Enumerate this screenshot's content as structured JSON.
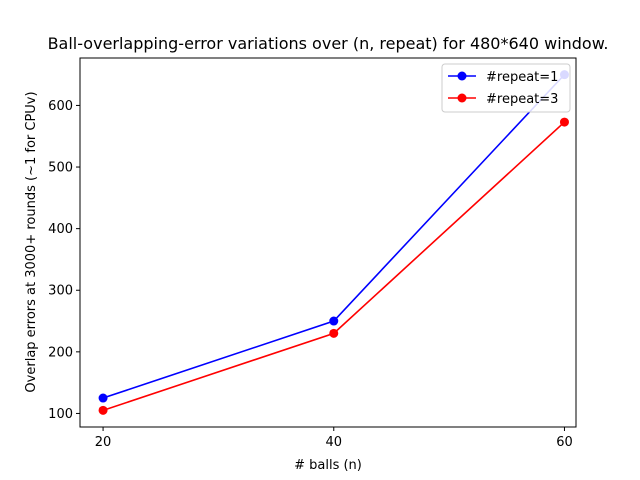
{
  "chart_data": {
    "type": "line",
    "title": "Ball-overlapping-error variations over (n, repeat) for 480*640 window.",
    "xlabel": "# balls (n)",
    "ylabel": "Overlap errors at 3000+ rounds (~1 for CPUv)",
    "x": [
      20,
      40,
      60
    ],
    "xticks": [
      "20",
      "40",
      "60"
    ],
    "yticks": [
      "100",
      "200",
      "300",
      "400",
      "500",
      "600"
    ],
    "xlim": [
      18,
      61
    ],
    "ylim": [
      78,
      677
    ],
    "grid": false,
    "legend_position": "top-right",
    "series": [
      {
        "name": "#repeat=1",
        "color": "#0000ff",
        "marker": "circle",
        "values": [
          125,
          250,
          650
        ]
      },
      {
        "name": "#repeat=3",
        "color": "#ff0000",
        "marker": "circle",
        "values": [
          105,
          230,
          573
        ]
      }
    ]
  }
}
